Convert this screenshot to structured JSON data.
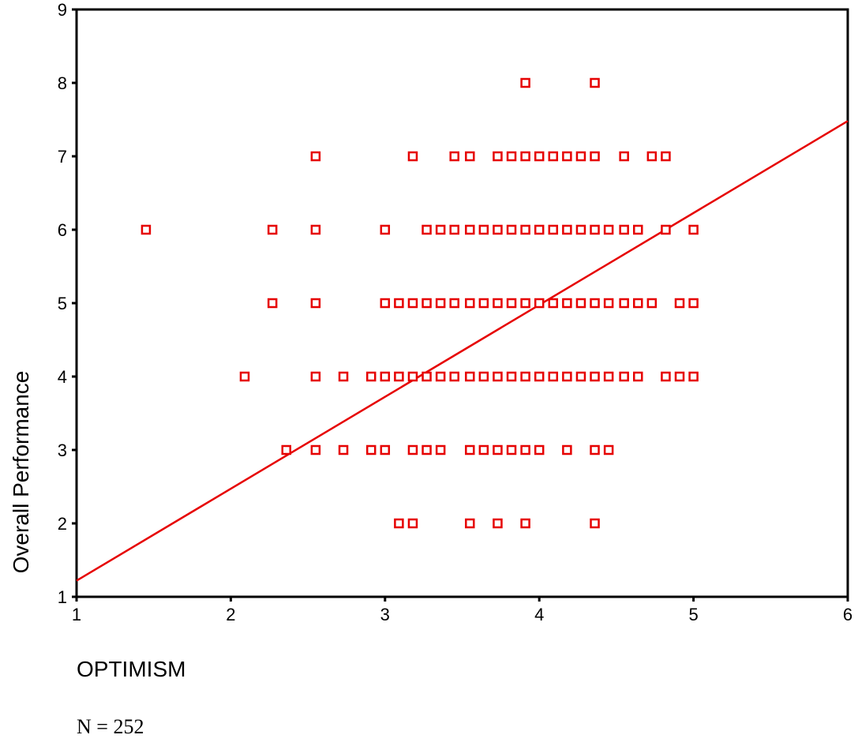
{
  "chart_data": {
    "type": "scatter",
    "xlabel": "OPTIMISM",
    "ylabel": "Overall Performance",
    "note": "N = 252",
    "xlim": [
      1,
      6
    ],
    "ylim": [
      1,
      9
    ],
    "x_ticks": [
      1,
      2,
      3,
      4,
      5,
      6
    ],
    "y_ticks": [
      1,
      2,
      3,
      4,
      5,
      6,
      7,
      8,
      9
    ],
    "grid": false,
    "marker_color": "#e60000",
    "line_color": "#e60000",
    "marker": "hollow-square",
    "fit_line": {
      "x1": 1,
      "y1": 1.22,
      "x2": 6,
      "y2": 7.48
    },
    "points": [
      {
        "x": 3.91,
        "y": 8
      },
      {
        "x": 4.36,
        "y": 8
      },
      {
        "x": 2.55,
        "y": 7
      },
      {
        "x": 3.18,
        "y": 7
      },
      {
        "x": 3.45,
        "y": 7
      },
      {
        "x": 3.55,
        "y": 7
      },
      {
        "x": 3.73,
        "y": 7
      },
      {
        "x": 3.82,
        "y": 7
      },
      {
        "x": 3.91,
        "y": 7
      },
      {
        "x": 4.0,
        "y": 7
      },
      {
        "x": 4.09,
        "y": 7
      },
      {
        "x": 4.18,
        "y": 7
      },
      {
        "x": 4.27,
        "y": 7
      },
      {
        "x": 4.36,
        "y": 7
      },
      {
        "x": 4.55,
        "y": 7
      },
      {
        "x": 4.73,
        "y": 7
      },
      {
        "x": 4.82,
        "y": 7
      },
      {
        "x": 1.45,
        "y": 6
      },
      {
        "x": 2.27,
        "y": 6
      },
      {
        "x": 2.55,
        "y": 6
      },
      {
        "x": 3.0,
        "y": 6
      },
      {
        "x": 3.27,
        "y": 6
      },
      {
        "x": 3.36,
        "y": 6
      },
      {
        "x": 3.45,
        "y": 6
      },
      {
        "x": 3.55,
        "y": 6
      },
      {
        "x": 3.64,
        "y": 6
      },
      {
        "x": 3.73,
        "y": 6
      },
      {
        "x": 3.82,
        "y": 6
      },
      {
        "x": 3.91,
        "y": 6
      },
      {
        "x": 4.0,
        "y": 6
      },
      {
        "x": 4.09,
        "y": 6
      },
      {
        "x": 4.18,
        "y": 6
      },
      {
        "x": 4.27,
        "y": 6
      },
      {
        "x": 4.36,
        "y": 6
      },
      {
        "x": 4.45,
        "y": 6
      },
      {
        "x": 4.55,
        "y": 6
      },
      {
        "x": 4.64,
        "y": 6
      },
      {
        "x": 4.82,
        "y": 6
      },
      {
        "x": 5.0,
        "y": 6
      },
      {
        "x": 2.27,
        "y": 5
      },
      {
        "x": 2.55,
        "y": 5
      },
      {
        "x": 3.0,
        "y": 5
      },
      {
        "x": 3.09,
        "y": 5
      },
      {
        "x": 3.18,
        "y": 5
      },
      {
        "x": 3.27,
        "y": 5
      },
      {
        "x": 3.36,
        "y": 5
      },
      {
        "x": 3.45,
        "y": 5
      },
      {
        "x": 3.55,
        "y": 5
      },
      {
        "x": 3.64,
        "y": 5
      },
      {
        "x": 3.73,
        "y": 5
      },
      {
        "x": 3.82,
        "y": 5
      },
      {
        "x": 3.91,
        "y": 5
      },
      {
        "x": 4.0,
        "y": 5
      },
      {
        "x": 4.09,
        "y": 5
      },
      {
        "x": 4.18,
        "y": 5
      },
      {
        "x": 4.27,
        "y": 5
      },
      {
        "x": 4.36,
        "y": 5
      },
      {
        "x": 4.45,
        "y": 5
      },
      {
        "x": 4.55,
        "y": 5
      },
      {
        "x": 4.64,
        "y": 5
      },
      {
        "x": 4.73,
        "y": 5
      },
      {
        "x": 4.91,
        "y": 5
      },
      {
        "x": 5.0,
        "y": 5
      },
      {
        "x": 2.09,
        "y": 4
      },
      {
        "x": 2.55,
        "y": 4
      },
      {
        "x": 2.73,
        "y": 4
      },
      {
        "x": 2.91,
        "y": 4
      },
      {
        "x": 3.0,
        "y": 4
      },
      {
        "x": 3.09,
        "y": 4
      },
      {
        "x": 3.18,
        "y": 4
      },
      {
        "x": 3.27,
        "y": 4
      },
      {
        "x": 3.36,
        "y": 4
      },
      {
        "x": 3.45,
        "y": 4
      },
      {
        "x": 3.55,
        "y": 4
      },
      {
        "x": 3.64,
        "y": 4
      },
      {
        "x": 3.73,
        "y": 4
      },
      {
        "x": 3.82,
        "y": 4
      },
      {
        "x": 3.91,
        "y": 4
      },
      {
        "x": 4.0,
        "y": 4
      },
      {
        "x": 4.09,
        "y": 4
      },
      {
        "x": 4.18,
        "y": 4
      },
      {
        "x": 4.27,
        "y": 4
      },
      {
        "x": 4.36,
        "y": 4
      },
      {
        "x": 4.45,
        "y": 4
      },
      {
        "x": 4.55,
        "y": 4
      },
      {
        "x": 4.64,
        "y": 4
      },
      {
        "x": 4.82,
        "y": 4
      },
      {
        "x": 4.91,
        "y": 4
      },
      {
        "x": 5.0,
        "y": 4
      },
      {
        "x": 2.36,
        "y": 3
      },
      {
        "x": 2.55,
        "y": 3
      },
      {
        "x": 2.73,
        "y": 3
      },
      {
        "x": 2.91,
        "y": 3
      },
      {
        "x": 3.0,
        "y": 3
      },
      {
        "x": 3.18,
        "y": 3
      },
      {
        "x": 3.27,
        "y": 3
      },
      {
        "x": 3.36,
        "y": 3
      },
      {
        "x": 3.55,
        "y": 3
      },
      {
        "x": 3.64,
        "y": 3
      },
      {
        "x": 3.73,
        "y": 3
      },
      {
        "x": 3.82,
        "y": 3
      },
      {
        "x": 3.91,
        "y": 3
      },
      {
        "x": 4.0,
        "y": 3
      },
      {
        "x": 4.18,
        "y": 3
      },
      {
        "x": 4.36,
        "y": 3
      },
      {
        "x": 4.45,
        "y": 3
      },
      {
        "x": 3.09,
        "y": 2
      },
      {
        "x": 3.18,
        "y": 2
      },
      {
        "x": 3.55,
        "y": 2
      },
      {
        "x": 3.73,
        "y": 2
      },
      {
        "x": 3.91,
        "y": 2
      },
      {
        "x": 4.36,
        "y": 2
      }
    ]
  }
}
